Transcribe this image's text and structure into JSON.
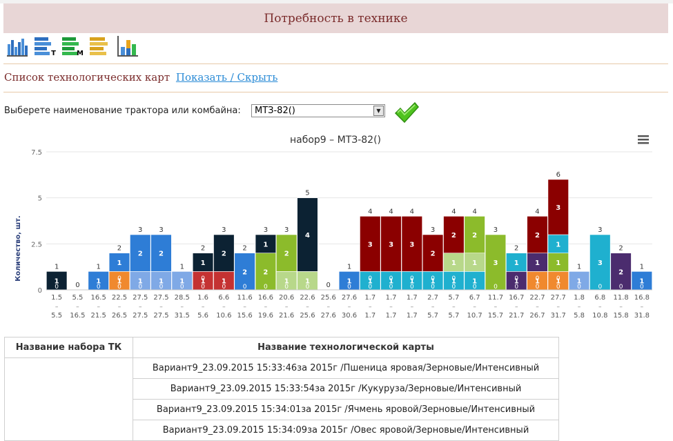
{
  "header": {
    "title": "Потребность в технике"
  },
  "toolbar": {
    "buttons": [
      {
        "name": "bar-chart-icon",
        "letter": ""
      },
      {
        "name": "list-t-icon",
        "letter": "T"
      },
      {
        "name": "list-m-icon",
        "letter": "M"
      },
      {
        "name": "list-gold-icon",
        "letter": ""
      },
      {
        "name": "column-chart-icon",
        "letter": ""
      }
    ]
  },
  "maps": {
    "label": "Список технологических карт",
    "toggle": "Показать / Скрыть"
  },
  "selector": {
    "label": "Выберете наименование трактора или комбайна:",
    "value": "МТЗ-82()"
  },
  "colors": {
    "c1": "#0c2233",
    "c2": "#2e7dd6",
    "c3": "#7fa9e6",
    "c4": "#8cbb2b",
    "c5": "#b8d88a",
    "c6": "#8b0000",
    "c7": "#1fb0cf",
    "c8": "#c43232",
    "c9": "#4b2c6e",
    "c10": "#f0892e"
  },
  "chart_data": {
    "type": "bar",
    "title": "набор9 – МТЗ-82()",
    "ylabel": "Количество, шт.",
    "ylim": [
      0,
      7.5
    ],
    "yticks": [
      "0",
      "2.5",
      "5",
      "7.5"
    ],
    "grid": true,
    "categories_top": [
      "1.5",
      "5.5",
      "16.5",
      "22.5",
      "27.5",
      "27.5",
      "28.5",
      "1.6",
      "6.6",
      "11.6",
      "16.6",
      "20.6",
      "22.6",
      "25.6",
      "27.6",
      "1.7",
      "1.7",
      "1.7",
      "2.7",
      "5.7",
      "6.7",
      "11.7",
      "16.7",
      "22.7",
      "27.7",
      "1.8",
      "6.8",
      "11.8",
      "16.8"
    ],
    "categories_bottom": [
      "5.5",
      "16.5",
      "21.5",
      "26.5",
      "27.5",
      "27.5",
      "31.5",
      "5.6",
      "10.6",
      "15.6",
      "19.6",
      "21.6",
      "25.6",
      "27.6",
      "30.6",
      "1.7",
      "1.7",
      "1.7",
      "5.7",
      "5.7",
      "10.7",
      "15.7",
      "21.7",
      "26.7",
      "31.7",
      "5.8",
      "10.8",
      "15.8",
      "31.8"
    ],
    "columns": [
      {
        "total": "1",
        "segments": [
          {
            "value": 1,
            "color": "c1",
            "label": "1"
          }
        ],
        "zeros": 1
      },
      {
        "total": "0",
        "segments": [],
        "zeros": 0
      },
      {
        "total": "1",
        "segments": [
          {
            "value": 1,
            "color": "c2",
            "label": "1"
          }
        ],
        "zeros": 1
      },
      {
        "total": "2",
        "segments": [
          {
            "value": 1,
            "color": "c10",
            "label": "1"
          },
          {
            "value": 1,
            "color": "c2",
            "label": "1"
          }
        ],
        "zeros": 2
      },
      {
        "total": "3",
        "segments": [
          {
            "value": 1,
            "color": "c3",
            "label": "1"
          },
          {
            "value": 2,
            "color": "c2",
            "label": "2"
          }
        ],
        "zeros": 1
      },
      {
        "total": "3",
        "segments": [
          {
            "value": 1,
            "color": "c3",
            "label": "1"
          },
          {
            "value": 2,
            "color": "c2",
            "label": "2"
          }
        ],
        "zeros": 1
      },
      {
        "total": "1",
        "segments": [
          {
            "value": 1,
            "color": "c3",
            "label": "1"
          }
        ],
        "zeros": 1
      },
      {
        "total": "2",
        "segments": [
          {
            "value": 1,
            "color": "c8",
            "label": "1"
          },
          {
            "value": 1,
            "color": "c1",
            "label": "1"
          }
        ],
        "zeros": 2
      },
      {
        "total": "3",
        "segments": [
          {
            "value": 1,
            "color": "c8",
            "label": "1"
          },
          {
            "value": 2,
            "color": "c1",
            "label": "2"
          }
        ],
        "zeros": 1
      },
      {
        "total": "2",
        "segments": [
          {
            "value": 2,
            "color": "c2",
            "label": "2"
          }
        ],
        "zeros": 1
      },
      {
        "total": "3",
        "segments": [
          {
            "value": 2,
            "color": "c4",
            "label": "2"
          },
          {
            "value": 1,
            "color": "c1",
            "label": "1"
          }
        ],
        "zeros": 1
      },
      {
        "total": "3",
        "segments": [
          {
            "value": 1,
            "color": "c5",
            "label": "1"
          },
          {
            "value": 2,
            "color": "c4",
            "label": "2"
          }
        ],
        "zeros": 1
      },
      {
        "total": "5",
        "segments": [
          {
            "value": 1,
            "color": "c5",
            "label": "1"
          },
          {
            "value": 4,
            "color": "c1",
            "label": "4"
          }
        ],
        "zeros": 1
      },
      {
        "total": "0",
        "segments": [],
        "zeros": 0
      },
      {
        "total": "1",
        "segments": [
          {
            "value": 1,
            "color": "c2",
            "label": "1"
          }
        ],
        "zeros": 1
      },
      {
        "total": "4",
        "segments": [
          {
            "value": 1,
            "color": "c7",
            "label": "1"
          },
          {
            "value": 3,
            "color": "c6",
            "label": "3"
          }
        ],
        "zeros": 2
      },
      {
        "total": "4",
        "segments": [
          {
            "value": 1,
            "color": "c7",
            "label": "1"
          },
          {
            "value": 3,
            "color": "c6",
            "label": "3"
          }
        ],
        "zeros": 2
      },
      {
        "total": "4",
        "segments": [
          {
            "value": 1,
            "color": "c7",
            "label": "1"
          },
          {
            "value": 3,
            "color": "c6",
            "label": "3"
          }
        ],
        "zeros": 2
      },
      {
        "total": "3",
        "segments": [
          {
            "value": 1,
            "color": "c7",
            "label": "1"
          },
          {
            "value": 2,
            "color": "c6",
            "label": "2"
          }
        ],
        "zeros": 2
      },
      {
        "total": "4",
        "segments": [
          {
            "value": 1,
            "color": "c7",
            "label": "1"
          },
          {
            "value": 1,
            "color": "c5",
            "label": "1"
          },
          {
            "value": 2,
            "color": "c6",
            "label": "2"
          }
        ],
        "zeros": 2
      },
      {
        "total": "4",
        "segments": [
          {
            "value": 1,
            "color": "c7",
            "label": "1"
          },
          {
            "value": 1,
            "color": "c5",
            "label": "1"
          },
          {
            "value": 2,
            "color": "c4",
            "label": "2"
          }
        ],
        "zeros": 1
      },
      {
        "total": "3",
        "segments": [
          {
            "value": 3,
            "color": "c4",
            "label": "3"
          }
        ],
        "zeros": 1
      },
      {
        "total": "2",
        "segments": [
          {
            "value": 1,
            "color": "c9",
            "label": "1"
          },
          {
            "value": 1,
            "color": "c7",
            "label": "1"
          }
        ],
        "zeros": 2
      },
      {
        "total": "4",
        "segments": [
          {
            "value": 1,
            "color": "c10",
            "label": "1"
          },
          {
            "value": 1,
            "color": "c9",
            "label": "1"
          },
          {
            "value": 2,
            "color": "c6",
            "label": "2"
          }
        ],
        "zeros": 2
      },
      {
        "total": "6",
        "segments": [
          {
            "value": 1,
            "color": "c10",
            "label": "1"
          },
          {
            "value": 1,
            "color": "c4",
            "label": "1"
          },
          {
            "value": 1,
            "color": "c7",
            "label": "1"
          },
          {
            "value": 3,
            "color": "c6",
            "label": "3"
          }
        ],
        "zeros": 2
      },
      {
        "total": "1",
        "segments": [
          {
            "value": 1,
            "color": "c3",
            "label": "1"
          }
        ],
        "zeros": 1
      },
      {
        "total": "3",
        "segments": [
          {
            "value": 3,
            "color": "c7",
            "label": "3"
          }
        ],
        "zeros": 1
      },
      {
        "total": "2",
        "segments": [
          {
            "value": 2,
            "color": "c9",
            "label": "2"
          }
        ],
        "zeros": 1
      },
      {
        "total": "1",
        "segments": [
          {
            "value": 1,
            "color": "c2",
            "label": "1"
          }
        ],
        "zeros": 1
      }
    ]
  },
  "table": {
    "headers": [
      "Название набора ТК",
      "Название технологической карты"
    ],
    "rows": [
      "Вариант9_23.09.2015 15:33:46за 2015г /Пшеница яровая/Зерновые/Интенсивный",
      "Вариант9_23.09.2015 15:33:54за 2015г /Кукуруза/Зерновые/Интенсивный",
      "Вариант9_23.09.2015 15:34:01за 2015г /Ячмень яровой/Зерновые/Интенсивный",
      "Вариант9_23.09.2015 15:34:09за 2015г /Овес яровой/Зерновые/Интенсивный"
    ]
  }
}
